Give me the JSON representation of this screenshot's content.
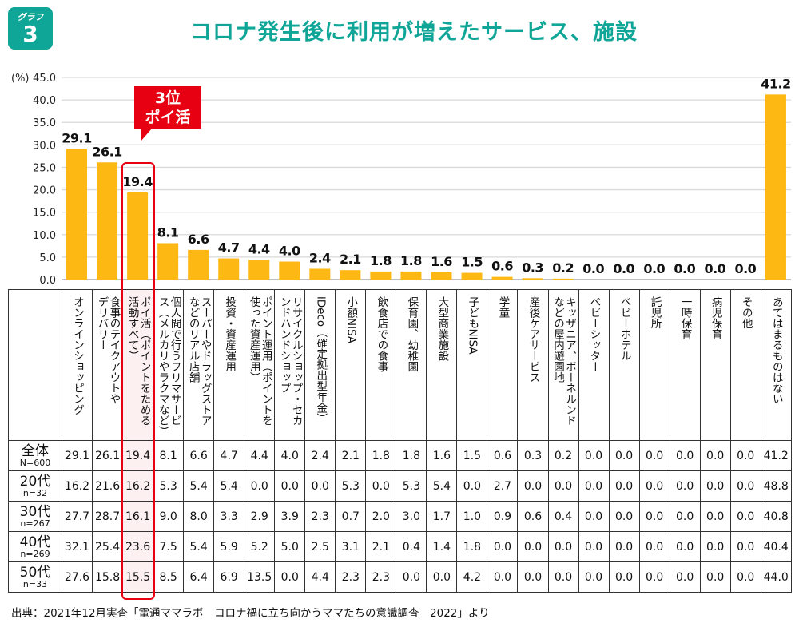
{
  "badge": {
    "label": "グラフ",
    "number": "3"
  },
  "title": "コロナ発生後に利用が増えたサービス、施設",
  "callout": {
    "line1": "3位",
    "line2": "ポイ活"
  },
  "colors": {
    "bar": "#fdb813",
    "accent": "#0fa597",
    "highlight": "#e60012",
    "grid": "#d9d9d9"
  },
  "chart_data": {
    "type": "bar",
    "title": "コロナ発生後に利用が増えたサービス、施設",
    "ylabel": "(%)",
    "ylim": [
      0,
      45
    ],
    "yticks": [
      "0.0",
      "5.0",
      "10.0",
      "15.0",
      "20.0",
      "25.0",
      "30.0",
      "35.0",
      "40.0",
      "45.0"
    ],
    "grid": true,
    "categories": [
      "オンラインショッピング",
      "食事のテイクアウトや\nデリバリー",
      "ポイ活（ポイントをためる\n活動すべて）",
      "個人間で行うフリマサービ\nス（メルカリやラクマなど）",
      "スーパーやドラッグストア\nなどのリアル店舗",
      "投資・資産運用",
      "ポイント運用（ポイントを\n使った資産運用）",
      "リサイクルショップ・セカ\nンドハンドショップ",
      "iDeco（確定拠出型年金）",
      "小額NISA",
      "飲食店での食事",
      "保育園、幼稚園",
      "大型商業施設",
      "子どもNISA",
      "学童",
      "産後ケアサービス",
      "キッザニア、ボーネルンド\nなどの屋内遊園地",
      "ベビーシッター",
      "ベビーホテル",
      "託児所",
      "一時保育",
      "病児保育",
      "その他",
      "あてはまるものはない"
    ],
    "values": [
      29.1,
      26.1,
      19.4,
      8.1,
      6.6,
      4.7,
      4.4,
      4.0,
      2.4,
      2.1,
      1.8,
      1.8,
      1.6,
      1.5,
      0.6,
      0.3,
      0.2,
      0.0,
      0.0,
      0.0,
      0.0,
      0.0,
      0.0,
      41.2
    ],
    "value_labels": [
      "29.1",
      "26.1",
      "19.4",
      "8.1",
      "6.6",
      "4.7",
      "4.4",
      "4.0",
      "2.4",
      "2.1",
      "1.8",
      "1.8",
      "1.6",
      "1.5",
      "0.6",
      "0.3",
      "0.2",
      "0.0",
      "0.0",
      "0.0",
      "0.0",
      "0.0",
      "0.0",
      "41.2"
    ],
    "highlight_index": 2,
    "table": [
      {
        "label": "全体",
        "n": "N=600",
        "values": [
          "29.1",
          "26.1",
          "19.4",
          "8.1",
          "6.6",
          "4.7",
          "4.4",
          "4.0",
          "2.4",
          "2.1",
          "1.8",
          "1.8",
          "1.6",
          "1.5",
          "0.6",
          "0.3",
          "0.2",
          "0.0",
          "0.0",
          "0.0",
          "0.0",
          "0.0",
          "0.0",
          "41.2"
        ]
      },
      {
        "label": "20代",
        "n": "n=32",
        "values": [
          "16.2",
          "21.6",
          "16.2",
          "5.3",
          "5.4",
          "5.4",
          "0.0",
          "0.0",
          "0.0",
          "5.3",
          "0.0",
          "5.3",
          "5.4",
          "0.0",
          "2.7",
          "0.0",
          "0.0",
          "0.0",
          "0.0",
          "0.0",
          "0.0",
          "0.0",
          "0.0",
          "48.8"
        ]
      },
      {
        "label": "30代",
        "n": "n=267",
        "values": [
          "27.7",
          "28.7",
          "16.1",
          "9.0",
          "8.0",
          "3.3",
          "2.9",
          "3.9",
          "2.3",
          "0.7",
          "2.0",
          "3.0",
          "1.7",
          "1.0",
          "0.9",
          "0.6",
          "0.4",
          "0.0",
          "0.0",
          "0.0",
          "0.0",
          "0.0",
          "0.0",
          "40.8"
        ]
      },
      {
        "label": "40代",
        "n": "n=269",
        "values": [
          "32.1",
          "25.4",
          "23.6",
          "7.5",
          "5.4",
          "5.9",
          "5.2",
          "5.0",
          "2.5",
          "3.1",
          "2.1",
          "0.4",
          "1.4",
          "1.8",
          "0.0",
          "0.0",
          "0.0",
          "0.0",
          "0.0",
          "0.0",
          "0.0",
          "0.0",
          "0.0",
          "40.4"
        ]
      },
      {
        "label": "50代",
        "n": "n=33",
        "values": [
          "27.6",
          "15.8",
          "15.5",
          "8.5",
          "6.4",
          "6.9",
          "13.5",
          "0.0",
          "4.4",
          "2.3",
          "2.3",
          "0.0",
          "0.0",
          "4.2",
          "0.0",
          "0.0",
          "0.0",
          "0.0",
          "0.0",
          "0.0",
          "0.0",
          "0.0",
          "0.0",
          "44.0"
        ]
      }
    ]
  },
  "footnote": "出典：2021年12月実査「電通ママラボ　コロナ禍に立ち向かうママたちの意識調査　2022」より"
}
